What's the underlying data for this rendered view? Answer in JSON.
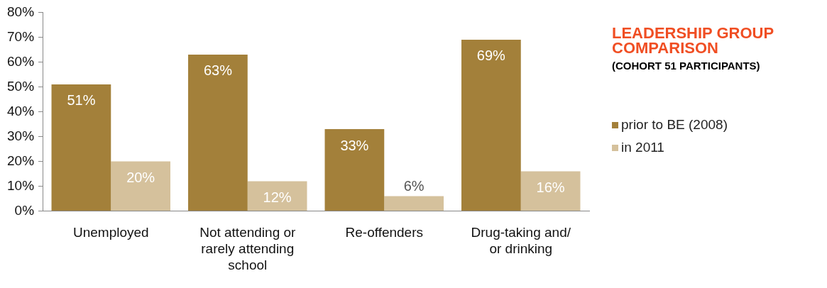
{
  "chart_data": {
    "type": "bar",
    "title": "LEADERSHIP GROUP COMPARISON",
    "subtitle": "(COHORT 51 PARTICIPANTS)",
    "categories": [
      "Unemployed",
      "Not attending or rarely attending school",
      "Re-offenders",
      "Drug-taking and/or drinking"
    ],
    "series": [
      {
        "name": "prior to BE (2008)",
        "color": "#a3803a",
        "values": [
          51,
          63,
          33,
          69
        ],
        "value_labels": [
          "51%",
          "63%",
          "33%",
          "69%"
        ]
      },
      {
        "name": "in 2011",
        "color": "#d5c19c",
        "values": [
          20,
          12,
          6,
          16
        ],
        "value_labels": [
          "20%",
          "12%",
          "6%",
          "16%"
        ]
      }
    ],
    "ylim": [
      0,
      80
    ],
    "yticks": [
      {
        "value": 0,
        "label": "0%"
      },
      {
        "value": 10,
        "label": "10%"
      },
      {
        "value": 20,
        "label": "20%"
      },
      {
        "value": 30,
        "label": "30%"
      },
      {
        "value": 40,
        "label": "40%"
      },
      {
        "value": 50,
        "label": "50%"
      },
      {
        "value": 60,
        "label": "60%"
      },
      {
        "value": 70,
        "label": "70%"
      },
      {
        "value": 80,
        "label": "80%"
      }
    ],
    "grid": false,
    "legend": "right"
  }
}
